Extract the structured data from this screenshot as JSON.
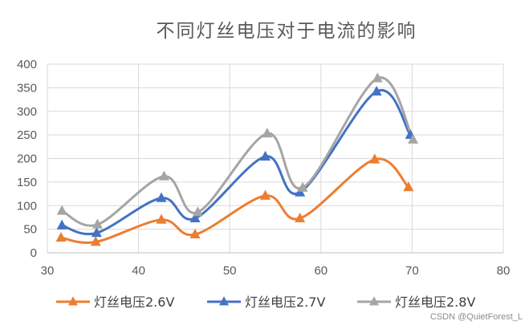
{
  "chart_data": {
    "type": "scatter",
    "title": "不同灯丝电压对于电流的影响",
    "xlabel": "",
    "ylabel": "",
    "xlim": [
      30,
      80
    ],
    "ylim": [
      0,
      400
    ],
    "x_ticks": [
      30,
      40,
      50,
      60,
      70,
      80
    ],
    "y_ticks": [
      0,
      50,
      100,
      150,
      200,
      250,
      300,
      350,
      400
    ],
    "grid": true,
    "legend_position": "bottom",
    "smooth_lines": true,
    "series": [
      {
        "name": "灯丝电压2.6V",
        "color": "#ed7d31",
        "x": [
          31.5,
          35.3,
          42.5,
          46.2,
          53.9,
          57.7,
          65.9,
          69.6
        ],
        "y": [
          32,
          23,
          70,
          39,
          121,
          73,
          198,
          139
        ]
      },
      {
        "name": "灯丝电压2.7V",
        "color": "#4472c4",
        "x": [
          31.6,
          35.4,
          42.5,
          46.2,
          53.9,
          57.7,
          66.1,
          69.8
        ],
        "y": [
          58,
          42,
          116,
          73,
          204,
          128,
          342,
          250
        ]
      },
      {
        "name": "灯丝电压2.8V",
        "color": "#a5a5a5",
        "x": [
          31.6,
          35.5,
          42.8,
          46.5,
          54.1,
          58.0,
          66.2,
          70.1
        ],
        "y": [
          89,
          60,
          162,
          86,
          253,
          138,
          370,
          240
        ]
      }
    ]
  },
  "watermark": "CSDN @QuietForest_L"
}
